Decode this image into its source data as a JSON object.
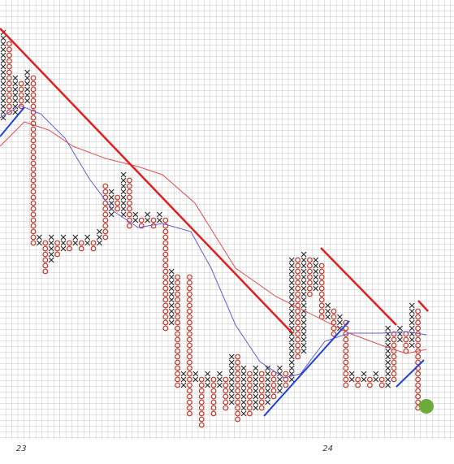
{
  "chart_data": {
    "type": "pnf",
    "x_color": "#333333",
    "o_color": "#c0392b",
    "ylim": [
      0,
      70
    ],
    "grid": true,
    "categories": [
      null,
      null,
      null,
      "23",
      null,
      null,
      null,
      null,
      null,
      null,
      null,
      null,
      null,
      null,
      null,
      null,
      null,
      null,
      null,
      null,
      null,
      null,
      null,
      null,
      null,
      null,
      null,
      null,
      null,
      null,
      null,
      null,
      null,
      null,
      null,
      null,
      null,
      null,
      null,
      null,
      null,
      null,
      null,
      null,
      null,
      null,
      null,
      null,
      null,
      null,
      null,
      null,
      null,
      null,
      "24",
      null,
      null,
      null,
      null,
      null,
      null,
      null,
      null,
      null,
      null,
      null,
      null,
      null,
      null,
      null,
      null
    ],
    "columns": [
      {
        "kind": "X",
        "low": 55,
        "high": 70
      },
      {
        "kind": "O",
        "low": 56,
        "high": 68
      },
      {
        "kind": "X",
        "low": 56,
        "high": 62
      },
      {
        "kind": "O",
        "low": 57,
        "high": 61
      },
      {
        "kind": "X",
        "low": 58,
        "high": 63
      },
      {
        "kind": "O",
        "low": 33,
        "high": 62
      },
      {
        "kind": "X",
        "low": 33,
        "high": 34
      },
      {
        "kind": "O",
        "low": 28,
        "high": 33
      },
      {
        "kind": "X",
        "low": 30,
        "high": 34
      },
      {
        "kind": "O",
        "low": 31,
        "high": 33
      },
      {
        "kind": "X",
        "low": 32,
        "high": 34
      },
      {
        "kind": "O",
        "low": 32,
        "high": 33
      },
      {
        "kind": "X",
        "low": 33,
        "high": 34
      },
      {
        "kind": "O",
        "low": 32,
        "high": 33
      },
      {
        "kind": "X",
        "low": 33,
        "high": 34
      },
      {
        "kind": "O",
        "low": 32,
        "high": 33
      },
      {
        "kind": "X",
        "low": 33,
        "high": 35
      },
      {
        "kind": "O",
        "low": 34,
        "high": 43
      },
      {
        "kind": "X",
        "low": 38,
        "high": 42
      },
      {
        "kind": "O",
        "low": 39,
        "high": 41
      },
      {
        "kind": "X",
        "low": 38,
        "high": 45
      },
      {
        "kind": "O",
        "low": 36,
        "high": 44
      },
      {
        "kind": "X",
        "low": 37,
        "high": 38
      },
      {
        "kind": "O",
        "low": 36,
        "high": 37
      },
      {
        "kind": "X",
        "low": 37,
        "high": 38
      },
      {
        "kind": "O",
        "low": 36,
        "high": 37
      },
      {
        "kind": "X",
        "low": 37,
        "high": 38
      },
      {
        "kind": "O",
        "low": 18,
        "high": 37
      },
      {
        "kind": "X",
        "low": 19,
        "high": 28
      },
      {
        "kind": "O",
        "low": 8,
        "high": 27
      },
      {
        "kind": "X",
        "low": 8,
        "high": 10
      },
      {
        "kind": "O",
        "low": 3,
        "high": 27
      },
      {
        "kind": "X",
        "low": 9,
        "high": 10
      },
      {
        "kind": "O",
        "low": 1,
        "high": 9
      },
      {
        "kind": "X",
        "low": 8,
        "high": 10
      },
      {
        "kind": "O",
        "low": 3,
        "high": 9
      },
      {
        "kind": "X",
        "low": 8,
        "high": 10
      },
      {
        "kind": "O",
        "low": 4,
        "high": 9
      },
      {
        "kind": "X",
        "low": 5,
        "high": 13
      },
      {
        "kind": "O",
        "low": 2,
        "high": 13
      },
      {
        "kind": "X",
        "low": 3,
        "high": 11
      },
      {
        "kind": "O",
        "low": 3,
        "high": 10
      },
      {
        "kind": "X",
        "low": 4,
        "high": 11
      },
      {
        "kind": "O",
        "low": 4,
        "high": 10
      },
      {
        "kind": "X",
        "low": 5,
        "high": 11
      },
      {
        "kind": "O",
        "low": 6,
        "high": 10
      },
      {
        "kind": "X",
        "low": 7,
        "high": 11
      },
      {
        "kind": "O",
        "low": 8,
        "high": 10
      },
      {
        "kind": "X",
        "low": 9,
        "high": 30
      },
      {
        "kind": "O",
        "low": 13,
        "high": 30
      },
      {
        "kind": "X",
        "low": 14,
        "high": 31
      },
      {
        "kind": "O",
        "low": 24,
        "high": 30
      },
      {
        "kind": "X",
        "low": 25,
        "high": 30
      },
      {
        "kind": "O",
        "low": 20,
        "high": 29
      },
      {
        "kind": "X",
        "low": 20,
        "high": 22
      },
      {
        "kind": "O",
        "low": 17,
        "high": 21
      },
      {
        "kind": "X",
        "low": 18,
        "high": 20
      },
      {
        "kind": "O",
        "low": 8,
        "high": 19
      },
      {
        "kind": "X",
        "low": 9,
        "high": 10
      },
      {
        "kind": "O",
        "low": 8,
        "high": 9
      },
      {
        "kind": "X",
        "low": 9,
        "high": 10
      },
      {
        "kind": "O",
        "low": 8,
        "high": 9
      },
      {
        "kind": "X",
        "low": 9,
        "high": 10
      },
      {
        "kind": "O",
        "low": 8,
        "high": 9
      },
      {
        "kind": "X",
        "low": 8,
        "high": 18
      },
      {
        "kind": "O",
        "low": 9,
        "high": 17
      },
      {
        "kind": "X",
        "low": 16,
        "high": 18
      },
      {
        "kind": "O",
        "low": 14,
        "high": 17
      },
      {
        "kind": "X",
        "low": 15,
        "high": 22
      },
      {
        "kind": "O",
        "low": 4,
        "high": 21
      }
    ]
  }
}
